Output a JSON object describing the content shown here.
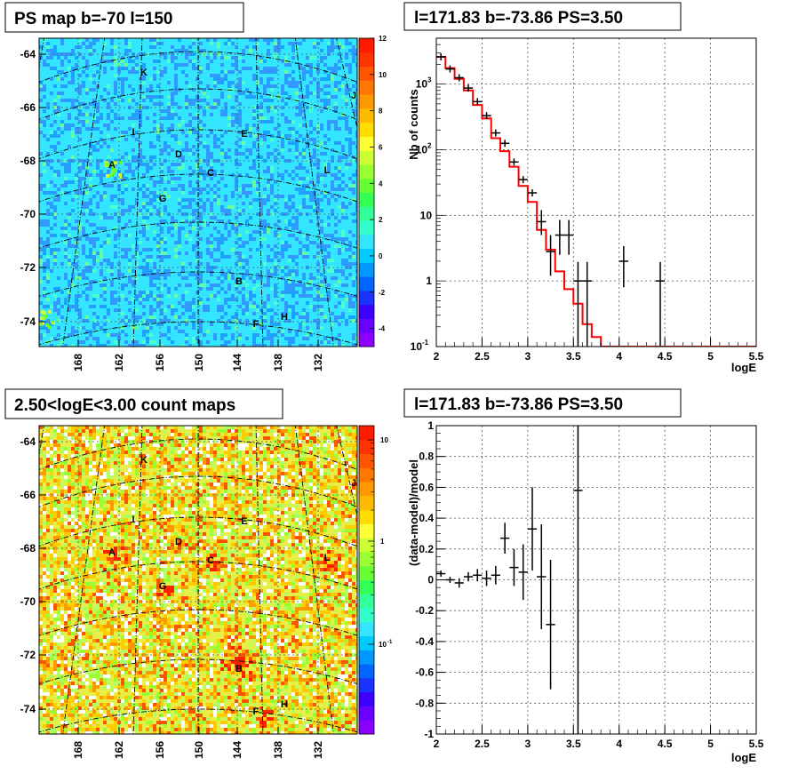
{
  "chart_data": [
    {
      "type": "heatmap",
      "title": "PS map b=-70 l=150",
      "y_ticks": [
        "-64",
        "-66",
        "-68",
        "-70",
        "-72",
        "-74"
      ],
      "x_ticks": [
        "168",
        "162",
        "156",
        "150",
        "144",
        "138",
        "132"
      ],
      "colorbar": {
        "min": -5,
        "max": 12,
        "ticks": [
          "12",
          "10",
          "8",
          "6",
          "4",
          "2",
          "0",
          "-2",
          "-4"
        ]
      },
      "sources": [
        "K",
        "J",
        "I",
        "E",
        "D",
        "A",
        "C",
        "L",
        "G",
        "B",
        "H",
        "F"
      ],
      "dominant_color": "#33e5ff"
    },
    {
      "type": "line",
      "title": "l=171.83 b=-73.86 PS=3.50",
      "xlabel": "logE",
      "ylabel": "Nb of counts",
      "xlim": [
        2,
        5.5
      ],
      "ylim": [
        0.1,
        5000
      ],
      "y_scale": "log",
      "x_ticks": [
        "2",
        "2.5",
        "3",
        "3.5",
        "4",
        "4.5",
        "5",
        "5.5"
      ],
      "y_ticks": [
        "10",
        "1"
      ],
      "y_ticks_exp": [
        {
          "base": "10",
          "exp": "3"
        },
        {
          "base": "10",
          "exp": "2"
        },
        {
          "base": "10",
          "exp": "-1"
        }
      ],
      "grid": true,
      "model_color": "#ff0000",
      "model_step": {
        "edges": [
          2.0,
          2.1,
          2.2,
          2.3,
          2.4,
          2.5,
          2.6,
          2.7,
          2.8,
          2.9,
          3.0,
          3.1,
          3.2,
          3.3,
          3.4,
          3.5,
          3.6,
          3.7,
          3.8,
          3.9,
          5.5
        ],
        "values": [
          2600,
          1750,
          1200,
          800,
          480,
          300,
          150,
          95,
          55,
          28,
          16,
          6,
          3,
          1.4,
          0.75,
          0.45,
          0.22,
          0.14,
          0.1,
          0.1
        ]
      },
      "data_points": [
        {
          "x": 2.05,
          "y": 2600
        },
        {
          "x": 2.15,
          "y": 1700
        },
        {
          "x": 2.25,
          "y": 1250
        },
        {
          "x": 2.35,
          "y": 870
        },
        {
          "x": 2.45,
          "y": 540
        },
        {
          "x": 2.55,
          "y": 330
        },
        {
          "x": 2.65,
          "y": 180
        },
        {
          "x": 2.75,
          "y": 125
        },
        {
          "x": 2.85,
          "y": 65
        },
        {
          "x": 2.95,
          "y": 35
        },
        {
          "x": 3.05,
          "y": 22
        },
        {
          "x": 3.15,
          "y": 8,
          "ylo": 5,
          "yhi": 12
        },
        {
          "x": 3.25,
          "y": 2.8,
          "ylo": 1.2,
          "yhi": 5
        },
        {
          "x": 3.35,
          "y": 5,
          "ylo": 2.5,
          "yhi": 8.5
        },
        {
          "x": 3.45,
          "y": 5,
          "ylo": 2.5,
          "yhi": 8.5
        },
        {
          "x": 3.55,
          "y": 1,
          "ylo": 0.1,
          "yhi": 1.95
        },
        {
          "x": 3.65,
          "y": 1,
          "ylo": 0.1,
          "yhi": 1.95
        },
        {
          "x": 4.05,
          "y": 2,
          "ylo": 0.8,
          "yhi": 3.4
        },
        {
          "x": 4.45,
          "y": 1,
          "ylo": 0.1,
          "yhi": 1.95
        }
      ]
    },
    {
      "type": "heatmap",
      "title": "2.50<logE<3.00 count maps",
      "y_ticks": [
        "-64",
        "-66",
        "-68",
        "-70",
        "-72",
        "-74"
      ],
      "x_ticks": [
        "168",
        "162",
        "156",
        "150",
        "144",
        "138",
        "132"
      ],
      "colorbar": {
        "scale": "log",
        "ticks": [
          "10",
          "1"
        ],
        "ticks_exp": [
          {
            "base": "10",
            "exp": "-1"
          }
        ]
      },
      "sources": [
        "K",
        "J",
        "I",
        "E",
        "D",
        "A",
        "C",
        "L",
        "G",
        "B",
        "H",
        "F"
      ],
      "dominant_color": "#e8f04a"
    },
    {
      "type": "scatter",
      "title": "l=171.83 b=-73.86 PS=3.50",
      "xlabel": "logE",
      "ylabel": "(data-model)/model",
      "xlim": [
        2,
        5.5
      ],
      "ylim": [
        -1,
        1
      ],
      "x_ticks": [
        "2",
        "2.5",
        "3",
        "3.5",
        "4",
        "4.5",
        "5",
        "5.5"
      ],
      "y_ticks": [
        "1",
        "0.8",
        "0.6",
        "0.4",
        "0.2",
        "0",
        "-0.2",
        "-0.4",
        "-0.6",
        "-0.8",
        "-1"
      ],
      "grid": true,
      "data_points": [
        {
          "x": 2.05,
          "y": 0.04,
          "err": 0.02
        },
        {
          "x": 2.15,
          "y": 0.0,
          "err": 0.02
        },
        {
          "x": 2.25,
          "y": -0.02,
          "err": 0.03
        },
        {
          "x": 2.35,
          "y": 0.02,
          "err": 0.03
        },
        {
          "x": 2.45,
          "y": 0.03,
          "err": 0.04
        },
        {
          "x": 2.55,
          "y": 0.01,
          "err": 0.05
        },
        {
          "x": 2.65,
          "y": 0.03,
          "err": 0.06
        },
        {
          "x": 2.75,
          "y": 0.27,
          "err": 0.1
        },
        {
          "x": 2.85,
          "y": 0.08,
          "err": 0.12
        },
        {
          "x": 2.95,
          "y": 0.05,
          "err": 0.18
        },
        {
          "x": 3.05,
          "y": 0.33,
          "err": 0.27
        },
        {
          "x": 3.15,
          "y": 0.02,
          "err": 0.34
        },
        {
          "x": 3.25,
          "y": -0.29,
          "err": 0.42
        },
        {
          "x": 3.55,
          "y": 0.58,
          "err": 1.8
        }
      ]
    }
  ]
}
